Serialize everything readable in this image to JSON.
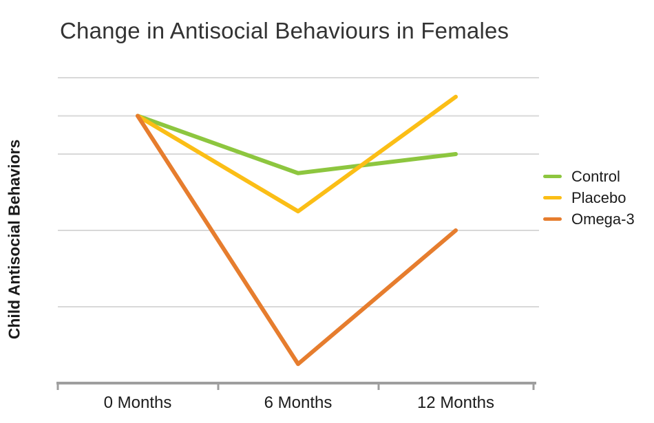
{
  "title": "Change in Antisocial Behaviours in Females",
  "colors": {
    "background": "#ffffff",
    "title_text": "#333333",
    "label_text": "#1b1b1b",
    "gridline": "#d8d8d8",
    "axis_line": "#9e9e9e",
    "control_green": "#8dc63f",
    "placebo_yellow": "#fbbe16",
    "omega3_orange": "#e67d2e"
  },
  "chart_data": {
    "type": "line",
    "title": "Change in Antisocial Behaviours in Females",
    "xlabel": "",
    "ylabel": "Child Antisocial Behaviors",
    "categories": [
      "0 Months",
      "6 Months",
      "12 Months"
    ],
    "series": [
      {
        "name": "Control",
        "color": "#8dc63f",
        "values": [
          7,
          5.5,
          6
        ]
      },
      {
        "name": "Placebo",
        "color": "#fbbe16",
        "values": [
          7,
          4.5,
          7.5
        ]
      },
      {
        "name": "Omega-3",
        "color": "#e67d2e",
        "values": [
          7,
          0.5,
          4
        ]
      }
    ],
    "ylim": [
      0,
      8
    ],
    "y_tick_labels_visible": false,
    "gridline_values": [
      2,
      4,
      6,
      7,
      8
    ],
    "grid": "horizontal",
    "legend_position": "right"
  }
}
